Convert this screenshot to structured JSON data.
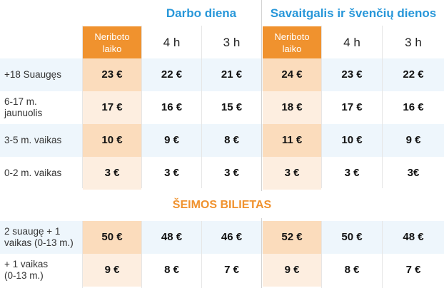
{
  "groups": {
    "weekday_title": "Darbo diena",
    "weekend_title": "Savaitgalis ir švenčių dienos"
  },
  "columns": {
    "weekday": [
      "Neriboto laiko",
      "4 h",
      "3 h"
    ],
    "weekend": [
      "Neriboto laiko",
      "4 h",
      "3 h"
    ]
  },
  "rows": [
    {
      "label": "+18 Suaugęs",
      "weekday": [
        "23 €",
        "22 €",
        "21 €"
      ],
      "weekend": [
        "24 €",
        "23 €",
        "22 €"
      ]
    },
    {
      "label": "6-17 m. jaunuolis",
      "weekday": [
        "17 €",
        "16 €",
        "15 €"
      ],
      "weekend": [
        "18 €",
        "17 €",
        "16 €"
      ]
    },
    {
      "label": "3-5 m. vaikas",
      "weekday": [
        "10 €",
        "9 €",
        "8 €"
      ],
      "weekend": [
        "11 €",
        "10 €",
        "9 €"
      ]
    },
    {
      "label": "0-2 m. vaikas",
      "weekday": [
        "3 €",
        "3 €",
        "3 €"
      ],
      "weekend": [
        "3 €",
        "3 €",
        "3€"
      ]
    }
  ],
  "family": {
    "title": "ŠEIMOS BILIETAS",
    "rows": [
      {
        "label": "2 suaugę + 1 vaikas (0-13 m.)",
        "weekday": [
          "50 €",
          "48 €",
          "46 €"
        ],
        "weekend": [
          "52 €",
          "50 €",
          "48 €"
        ]
      },
      {
        "label": "+ 1 vaikas (0-13 m.)",
        "weekday": [
          "9 €",
          "8 €",
          "7 €"
        ],
        "weekend": [
          "9 €",
          "8 €",
          "7 €"
        ]
      }
    ]
  },
  "colors": {
    "accent_blue": "#2897d9",
    "accent_orange": "#f0922e",
    "band_blue": "#eef6fc",
    "cell_orange_strong": "#fbdcbc",
    "cell_orange_light": "#fdeee0"
  }
}
